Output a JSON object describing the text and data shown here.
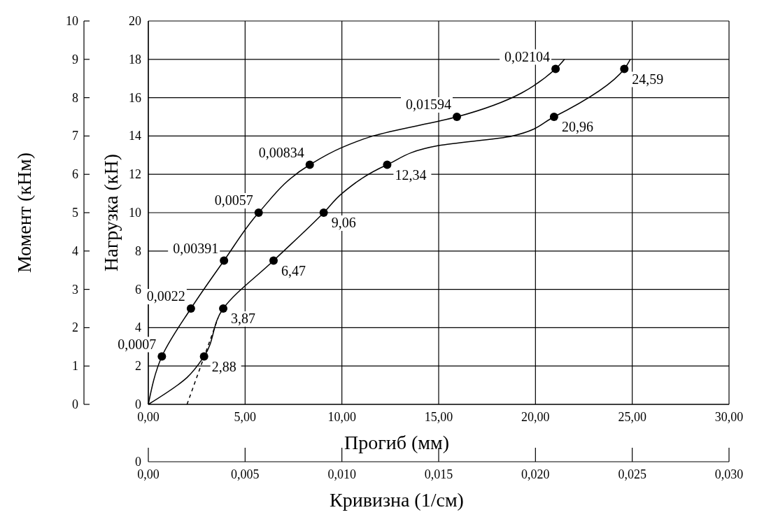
{
  "chart_data": {
    "type": "line",
    "xlabel": "Прогиб (мм)",
    "ylabel": "Нагрузка (кН)",
    "y2label": "Момент (кНм)",
    "x2label": "Кривизна (1/см)",
    "xlim": [
      0,
      30
    ],
    "xticks": [
      {
        "value": 0,
        "label": "0,00"
      },
      {
        "value": 5,
        "label": "5,00"
      },
      {
        "value": 10,
        "label": "10,00"
      },
      {
        "value": 15,
        "label": "15,00"
      },
      {
        "value": 20,
        "label": "20,00"
      },
      {
        "value": 25,
        "label": "25,00"
      },
      {
        "value": 30,
        "label": "30,00"
      }
    ],
    "ylim": [
      0,
      20
    ],
    "yticks": [
      0,
      2,
      4,
      6,
      8,
      10,
      12,
      14,
      16,
      18,
      20
    ],
    "y2lim": [
      0,
      10
    ],
    "y2ticks": [
      0,
      1,
      2,
      3,
      4,
      5,
      6,
      7,
      8,
      9,
      10
    ],
    "x2lim": [
      0,
      0.03
    ],
    "x2ticks": [
      {
        "value": 0,
        "label": "0,00"
      },
      {
        "value": 0.005,
        "label": "0,005"
      },
      {
        "value": 0.01,
        "label": "0,010"
      },
      {
        "value": 0.015,
        "label": "0,015"
      },
      {
        "value": 0.02,
        "label": "0,020"
      },
      {
        "value": 0.025,
        "label": "0,025"
      },
      {
        "value": 0.03,
        "label": "0,030"
      }
    ],
    "grid": true,
    "annotations": [
      "0,0007",
      "0,0022",
      "0,00391",
      "0,0057",
      "0,00834",
      "0,01594",
      "0,02104",
      "2,88",
      "3,87",
      "6,47",
      "9,06",
      "12,34",
      "20,96",
      "24,59",
      "0"
    ],
    "series": [
      {
        "axis": "x2",
        "color": "#000000",
        "marker": "none",
        "x": [
          0,
          0.0007,
          0.0022,
          0.00391,
          0.0057,
          0.00834,
          0.01,
          0.0116,
          0.01594,
          0.02104,
          0.0215
        ],
        "values": [
          0,
          2.5,
          5,
          7.5,
          10,
          12.5,
          13.4,
          14,
          15,
          17.5,
          18
        ]
      },
      {
        "type": "scatter",
        "axis": "x2",
        "color": "#000000",
        "marker": "circle",
        "x": [
          0.0007,
          0.0022,
          0.00391,
          0.0057,
          0.00834,
          0.01594,
          0.02104
        ],
        "values": [
          2.5,
          5,
          7.5,
          10,
          12.5,
          15,
          17.5
        ]
      },
      {
        "color": "#000000",
        "marker": "none",
        "x": [
          0,
          2.0,
          2.88,
          3.87,
          6.47,
          9.06,
          10,
          12.34,
          15,
          18.8,
          20.96,
          24.59,
          24.9
        ],
        "values": [
          0,
          1.4,
          2.5,
          5,
          7.5,
          10,
          11,
          12.5,
          13.5,
          14,
          15,
          17.5,
          18
        ]
      },
      {
        "type": "scatter",
        "color": "#000000",
        "marker": "circle",
        "x": [
          2.88,
          3.87,
          6.47,
          9.06,
          12.34,
          20.96,
          24.59
        ],
        "values": [
          2.5,
          5,
          7.5,
          10,
          12.5,
          15,
          17.5
        ]
      },
      {
        "color": "#000000",
        "marker": "none",
        "line_style": "dashed",
        "x": [
          2.0,
          3.6
        ],
        "values": [
          0,
          4.5
        ]
      }
    ]
  }
}
